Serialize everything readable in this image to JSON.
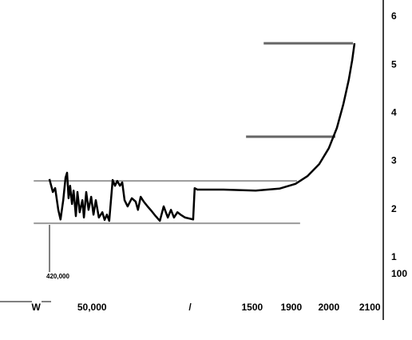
{
  "chart_data": {
    "type": "line",
    "x": [
      12.9,
      13.8,
      14.4,
      15.2,
      15.8,
      16.5,
      17.1,
      17.5,
      17.9,
      18.3,
      18.8,
      19.2,
      19.8,
      20.2,
      20.8,
      21.5,
      21.9,
      22.5,
      23.1,
      23.8,
      24.4,
      25,
      25.8,
      26.7,
      27.3,
      27.9,
      28.5,
      29.4,
      30,
      30.6,
      31.3,
      31.9,
      32.5,
      33.3,
      34.4,
      35.4,
      36,
      36.7,
      37.5,
      38.5,
      39.6,
      40.6,
      41.7,
      42.7,
      43.8,
      44.6,
      45.4,
      46.3,
      47.1,
      48.3,
      50.4,
      50.8,
      51.5,
      58.3,
      66.7,
      72.9,
      77.1,
      80.2,
      83.3,
      85.8,
      87.9,
      89.6,
      91,
      91.9,
      92.5
    ],
    "series": [
      {
        "color": "#000000",
        "values": [
          2.63,
          2.36,
          2.44,
          1.99,
          1.79,
          2.19,
          2.66,
          2.76,
          2.23,
          2.49,
          2.11,
          2.39,
          1.86,
          2.36,
          1.94,
          2.19,
          1.83,
          2.36,
          1.99,
          2.26,
          1.89,
          2.19,
          1.83,
          1.94,
          1.78,
          1.89,
          1.76,
          2.61,
          2.49,
          2.59,
          2.49,
          2.56,
          2.19,
          2.06,
          2.23,
          2.16,
          1.99,
          2.26,
          2.16,
          2.06,
          1.96,
          1.86,
          1.76,
          2.06,
          1.83,
          1.99,
          1.83,
          1.94,
          1.89,
          1.83,
          1.79,
          2.44,
          2.41,
          2.41,
          2.39,
          2.43,
          2.53,
          2.69,
          2.94,
          3.27,
          3.69,
          4.19,
          4.69,
          5.1,
          5.45
        ]
      }
    ],
    "xlim": [
      0,
      100
    ],
    "xticks": [
      {
        "value": 9.4,
        "label": "W"
      },
      {
        "value": 24,
        "label": "50,000"
      },
      {
        "value": 49.6,
        "label": "/"
      },
      {
        "value": 65.8,
        "label": "1500"
      },
      {
        "value": 76,
        "label": "1900"
      },
      {
        "value": 85.8,
        "label": "2000"
      },
      {
        "value": 96.5,
        "label": "2100"
      }
    ],
    "ylim": [
      -0.3,
      6.35
    ],
    "yticks": [
      1,
      2,
      3,
      4,
      5,
      6
    ],
    "reference_lines": [
      {
        "y": 2.59,
        "x": [
          8.8,
          77.5
        ],
        "color": "#9a9a9a"
      },
      {
        "y": 1.71,
        "x": [
          8.8,
          78.3
        ],
        "color": "#9a9a9a"
      },
      {
        "y": 5.45,
        "x": [
          68.8,
          92.1
        ],
        "color": "#666666"
      },
      {
        "y": 3.51,
        "x": [
          64.2,
          87.5
        ],
        "color": "#666666"
      }
    ],
    "annotations": [
      "420,000",
      "100"
    ]
  }
}
